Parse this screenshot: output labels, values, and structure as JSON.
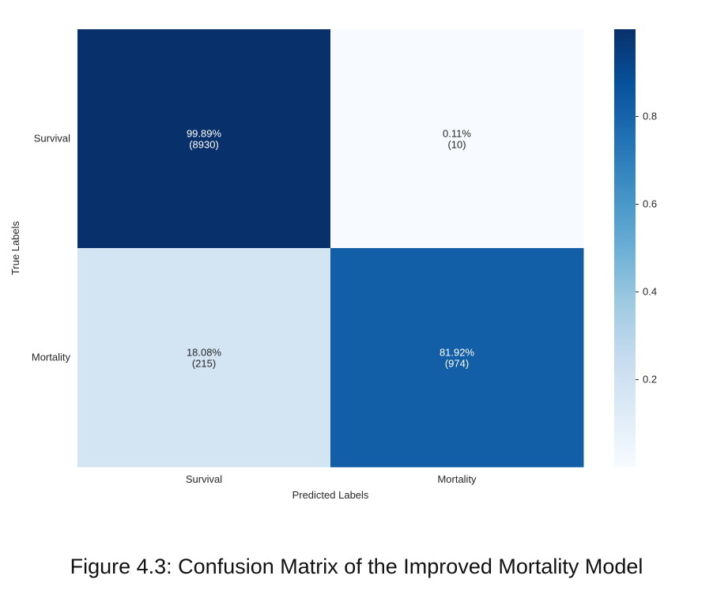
{
  "chart_data": {
    "type": "heatmap",
    "x_categories": [
      "Survival",
      "Mortality"
    ],
    "y_categories": [
      "Survival",
      "Mortality"
    ],
    "xlabel": "Predicted Labels",
    "ylabel": "True Labels",
    "matrix": [
      [
        0.9989,
        0.0011
      ],
      [
        0.1808,
        0.8192
      ]
    ],
    "counts": [
      [
        8930,
        10
      ],
      [
        215,
        974
      ]
    ],
    "annotations": [
      [
        [
          "99.89%",
          "(8930)"
        ],
        [
          "0.11%",
          "(10)"
        ]
      ],
      [
        [
          "18.08%",
          "(215)"
        ],
        [
          "81.92%",
          "(974)"
        ]
      ]
    ],
    "colormap": "Blues",
    "colorbar": {
      "range": [
        0.0011,
        0.9989
      ],
      "ticks": [
        0.2,
        0.4,
        0.6,
        0.8
      ],
      "tick_labels": [
        "0.2",
        "0.4",
        "0.6",
        "0.8"
      ]
    }
  },
  "caption": "Figure 4.3: Confusion Matrix of the Improved Mortality Model"
}
